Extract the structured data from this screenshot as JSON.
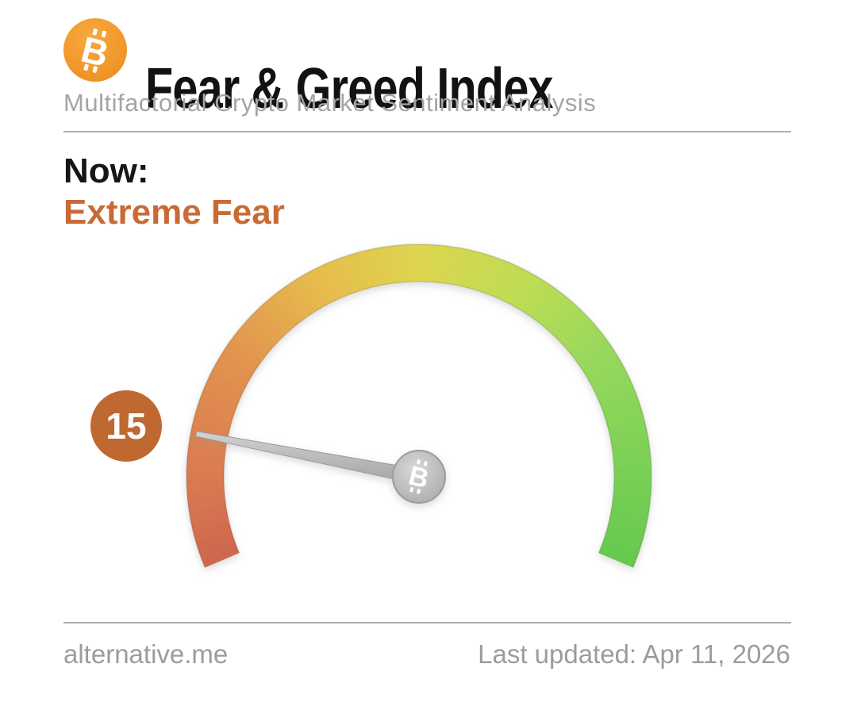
{
  "header": {
    "title": "Fear & Greed Index",
    "subtitle": "Multifactorial Crypto Market Sentiment Analysis",
    "logo": {
      "icon": "bitcoin-icon",
      "bg_color_top": "#f8a93f",
      "bg_color_bottom": "#ee8e21",
      "symbol_color": "#ffffff"
    }
  },
  "status": {
    "label": "Now:",
    "value": "Extreme Fear",
    "value_color": "#c96a35"
  },
  "chart_data": {
    "type": "gauge",
    "title": "Fear & Greed Index",
    "value": 15,
    "value_label": "Extreme Fear",
    "min": 0,
    "max": 100,
    "start_angle_deg": 203,
    "end_angle_deg": -23,
    "band_colors": [
      {
        "pos": 0.0,
        "color": "#cd6650"
      },
      {
        "pos": 0.1,
        "color": "#da7a51"
      },
      {
        "pos": 0.25,
        "color": "#e2944f"
      },
      {
        "pos": 0.38,
        "color": "#e6bc4e"
      },
      {
        "pos": 0.5,
        "color": "#ddd54f"
      },
      {
        "pos": 0.63,
        "color": "#bedc55"
      },
      {
        "pos": 0.75,
        "color": "#97d85c"
      },
      {
        "pos": 0.88,
        "color": "#7cd156"
      },
      {
        "pos": 1.0,
        "color": "#64c94e"
      }
    ],
    "badge": {
      "value": "15",
      "bg_color": "#bf6830",
      "text_color": "#ffffff"
    },
    "needle": {
      "color_light": "#d2d2d2",
      "color_dark": "#a2a2a2",
      "hub_icon": "bitcoin-icon"
    }
  },
  "footer": {
    "site": "alternative.me",
    "updated": "Last updated: Apr 11, 2026"
  }
}
